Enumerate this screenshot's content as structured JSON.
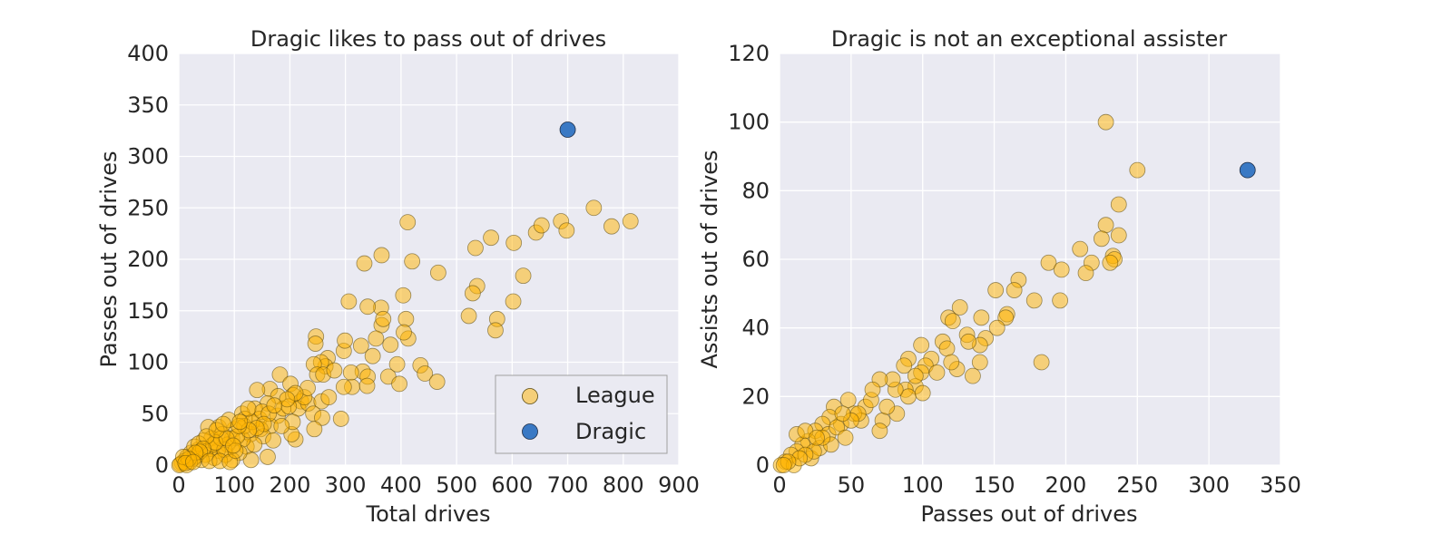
{
  "chart_data": [
    {
      "type": "scatter",
      "title": "Dragic likes to pass out of drives",
      "xlabel": "Total drives",
      "ylabel": "Passes out of drives",
      "xlim": [
        0,
        900
      ],
      "ylim": [
        0,
        400
      ],
      "xticks": [
        0,
        100,
        200,
        300,
        400,
        500,
        600,
        700,
        800,
        900
      ],
      "yticks": [
        0,
        50,
        100,
        150,
        200,
        250,
        300,
        350,
        400
      ],
      "grid": true,
      "legend": {
        "placement": "lower-right",
        "entries": [
          "League",
          "Dragic"
        ]
      },
      "series": [
        {
          "name": "League",
          "color": "#FFB400",
          "points": [
            [
              412,
              236
            ],
            [
              365,
              204
            ],
            [
              334,
              196
            ],
            [
              420,
              198
            ],
            [
              467,
              187
            ],
            [
              306,
              159
            ],
            [
              404,
              165
            ],
            [
              364,
              153
            ],
            [
              340,
              154
            ],
            [
              365,
              136
            ],
            [
              368,
              142
            ],
            [
              409,
              142
            ],
            [
              355,
              123
            ],
            [
              413,
              123
            ],
            [
              405,
              129
            ],
            [
              247,
              125
            ],
            [
              246,
              118
            ],
            [
              268,
              104
            ],
            [
              264,
              96
            ],
            [
              256,
              100
            ],
            [
              243,
              98
            ],
            [
              249,
              88
            ],
            [
              260,
              88
            ],
            [
              280,
              92
            ],
            [
              297,
              111
            ],
            [
              299,
              121
            ],
            [
              328,
              116
            ],
            [
              381,
              117
            ],
            [
              349,
              106
            ],
            [
              331,
              91
            ],
            [
              340,
              86
            ],
            [
              310,
              90
            ],
            [
              312,
              76
            ],
            [
              339,
              77
            ],
            [
              393,
              98
            ],
            [
              435,
              97
            ],
            [
              443,
              89
            ],
            [
              377,
              86
            ],
            [
              397,
              79
            ],
            [
              465,
              81
            ],
            [
              534,
              211
            ],
            [
              562,
              221
            ],
            [
              537,
              174
            ],
            [
              529,
              167
            ],
            [
              522,
              145
            ],
            [
              573,
              142
            ],
            [
              570,
              131
            ],
            [
              603,
              216
            ],
            [
              620,
              184
            ],
            [
              602,
              159
            ],
            [
              643,
              226
            ],
            [
              653,
              233
            ],
            [
              688,
              237
            ],
            [
              698,
              228
            ],
            [
              747,
              250
            ],
            [
              779,
              232
            ],
            [
              813,
              237
            ],
            [
              182,
              88
            ],
            [
              201,
              79
            ],
            [
              164,
              74
            ],
            [
              141,
              73
            ],
            [
              179,
              67
            ],
            [
              206,
              68
            ],
            [
              220,
              62
            ],
            [
              215,
              55
            ],
            [
              233,
              60
            ],
            [
              257,
              62
            ],
            [
              270,
              66
            ],
            [
              297,
              76
            ],
            [
              242,
              50
            ],
            [
              258,
              46
            ],
            [
              244,
              35
            ],
            [
              210,
              25
            ],
            [
              203,
              30
            ],
            [
              292,
              45
            ],
            [
              160,
              60
            ],
            [
              137,
              55
            ],
            [
              114,
              50
            ],
            [
              119,
              45
            ],
            [
              145,
              45
            ],
            [
              178,
              48
            ],
            [
              205,
              42
            ],
            [
              165,
              38
            ],
            [
              147,
              35
            ],
            [
              129,
              30
            ],
            [
              100,
              35
            ],
            [
              96,
              26
            ],
            [
              72,
              37
            ],
            [
              78,
              30
            ],
            [
              53,
              37
            ],
            [
              59,
              26
            ],
            [
              45,
              24
            ],
            [
              35,
              15
            ],
            [
              88,
              20
            ],
            [
              122,
              18
            ],
            [
              152,
              28
            ],
            [
              170,
              24
            ],
            [
              185,
              38
            ],
            [
              136,
              20
            ],
            [
              115,
              25
            ],
            [
              160,
              8
            ],
            [
              130,
              5
            ],
            [
              109,
              12
            ],
            [
              96,
              5
            ],
            [
              84,
              10
            ],
            [
              70,
              14
            ],
            [
              64,
              7
            ],
            [
              57,
              16
            ],
            [
              48,
              10
            ],
            [
              41,
              5
            ],
            [
              32,
              9
            ],
            [
              25,
              6
            ],
            [
              20,
              3
            ],
            [
              15,
              8
            ],
            [
              10,
              4
            ],
            [
              6,
              2
            ],
            [
              3,
              1
            ],
            [
              1,
              0
            ],
            [
              14,
              0
            ],
            [
              22,
              12
            ],
            [
              28,
              18
            ],
            [
              36,
              21
            ],
            [
              62,
              20
            ],
            [
              82,
              15
            ],
            [
              105,
              28
            ],
            [
              118,
              38
            ],
            [
              132,
              42
            ],
            [
              150,
              52
            ],
            [
              162,
              50
            ],
            [
              188,
              55
            ],
            [
              198,
              57
            ],
            [
              226,
              66
            ],
            [
              232,
              75
            ],
            [
              210,
              70
            ],
            [
              195,
              64
            ],
            [
              172,
              58
            ],
            [
              153,
              40
            ],
            [
              140,
              36
            ],
            [
              126,
              34
            ],
            [
              108,
              38
            ],
            [
              90,
              44
            ],
            [
              76,
              26
            ],
            [
              66,
              22
            ],
            [
              50,
              28
            ],
            [
              44,
              16
            ],
            [
              38,
              13
            ],
            [
              30,
              12
            ],
            [
              18,
              6
            ],
            [
              8,
              8
            ],
            [
              12,
              2
            ],
            [
              26,
              3
            ],
            [
              55,
              4
            ],
            [
              74,
              4
            ],
            [
              92,
              3
            ],
            [
              102,
              14
            ],
            [
              86,
              26
            ],
            [
              68,
              34
            ],
            [
              125,
              55
            ],
            [
              110,
              42
            ],
            [
              98,
              19
            ],
            [
              80,
              40
            ]
          ]
        },
        {
          "name": "Dragic",
          "color": "#3A79C4",
          "points": [
            [
              700,
              326
            ]
          ]
        }
      ]
    },
    {
      "type": "scatter",
      "title": "Dragic is not an exceptional assister",
      "xlabel": "Passes out of drives",
      "ylabel": "Assists out of drives",
      "xlim": [
        0,
        350
      ],
      "ylim": [
        0,
        120
      ],
      "xticks": [
        0,
        50,
        100,
        150,
        200,
        250,
        300,
        350
      ],
      "yticks": [
        0,
        20,
        40,
        60,
        80,
        100,
        120
      ],
      "grid": true,
      "series": [
        {
          "name": "League",
          "color": "#FFB400",
          "points": [
            [
              228,
              100
            ],
            [
              250,
              86
            ],
            [
              237,
              76
            ],
            [
              228,
              70
            ],
            [
              237,
              67
            ],
            [
              225,
              66
            ],
            [
              210,
              63
            ],
            [
              233,
              61
            ],
            [
              234,
              60
            ],
            [
              231,
              59
            ],
            [
              218,
              59
            ],
            [
              188,
              59
            ],
            [
              197,
              57
            ],
            [
              214,
              56
            ],
            [
              167,
              54
            ],
            [
              164,
              51
            ],
            [
              151,
              51
            ],
            [
              178,
              48
            ],
            [
              196,
              48
            ],
            [
              159,
              44
            ],
            [
              158,
              43
            ],
            [
              141,
              43
            ],
            [
              126,
              46
            ],
            [
              118,
              43
            ],
            [
              121,
              42
            ],
            [
              152,
              40
            ],
            [
              131,
              38
            ],
            [
              114,
              36
            ],
            [
              144,
              37
            ],
            [
              140,
              35
            ],
            [
              132,
              36
            ],
            [
              117,
              34
            ],
            [
              106,
              31
            ],
            [
              102,
              29
            ],
            [
              99,
              35
            ],
            [
              124,
              28
            ],
            [
              120,
              30
            ],
            [
              140,
              30
            ],
            [
              135,
              26
            ],
            [
              183,
              30
            ],
            [
              90,
              31
            ],
            [
              87,
              29
            ],
            [
              95,
              23
            ],
            [
              99,
              27
            ],
            [
              88,
              22
            ],
            [
              90,
              20
            ],
            [
              81,
              22
            ],
            [
              79,
              25
            ],
            [
              70,
              25
            ],
            [
              82,
              15
            ],
            [
              72,
              13
            ],
            [
              70,
              10
            ],
            [
              60,
              17
            ],
            [
              57,
              13
            ],
            [
              48,
              19
            ],
            [
              43,
              12
            ],
            [
              38,
              17
            ],
            [
              35,
              14
            ],
            [
              30,
              12
            ],
            [
              25,
              10
            ],
            [
              20,
              7
            ],
            [
              16,
              6
            ],
            [
              12,
              4
            ],
            [
              8,
              3
            ],
            [
              4,
              1
            ],
            [
              1,
              0
            ],
            [
              10,
              0
            ],
            [
              22,
              2
            ],
            [
              28,
              5
            ],
            [
              34,
              9
            ],
            [
              40,
              11
            ],
            [
              46,
              8
            ],
            [
              52,
              15
            ],
            [
              64,
              19
            ],
            [
              75,
              17
            ],
            [
              95,
              26
            ],
            [
              100,
              21
            ],
            [
              110,
              27
            ],
            [
              65,
              22
            ],
            [
              55,
              15
            ],
            [
              50,
              13
            ],
            [
              44,
              15
            ],
            [
              36,
              6
            ],
            [
              30,
              8
            ],
            [
              24,
              4
            ],
            [
              18,
              3
            ],
            [
              14,
              2
            ],
            [
              6,
              1
            ],
            [
              3,
              0
            ],
            [
              12,
              9
            ],
            [
              18,
              10
            ],
            [
              26,
              8
            ]
          ]
        },
        {
          "name": "Dragic",
          "color": "#3A79C4",
          "points": [
            [
              327,
              86
            ]
          ]
        }
      ]
    }
  ]
}
